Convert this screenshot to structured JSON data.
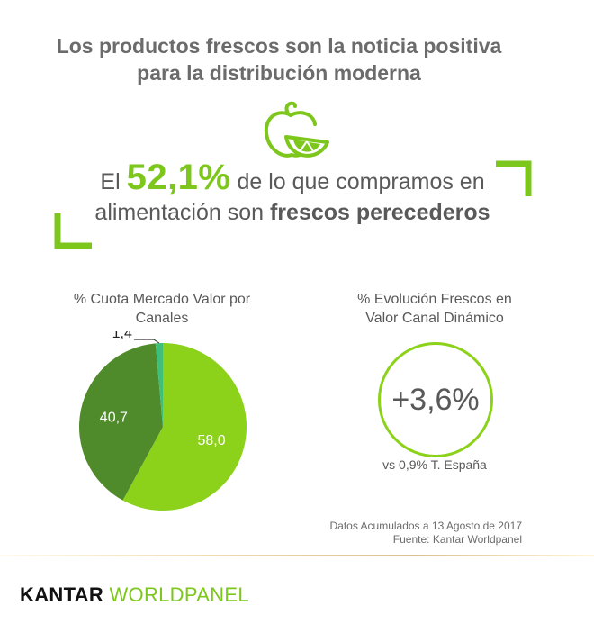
{
  "title": {
    "line1": "Los productos frescos son la noticia positiva",
    "line2": "para la distribución moderna"
  },
  "icon": "fruit-apple-lemon-icon",
  "headline": {
    "pre": "El ",
    "big": "52,1%",
    "mid": " de lo que compramos en",
    "line2_pre": "alimentación son ",
    "line2_bold": "frescos perecederos"
  },
  "pie": {
    "title_line1": "% Cuota Mercado Valor  por",
    "title_line2": "Canales"
  },
  "evolution": {
    "title_line1": "% Evolución Frescos en",
    "title_line2": "Valor Canal Dinámico",
    "value": "+3,6%",
    "subtitle": "vs 0,9% T. España"
  },
  "source": {
    "line1": "Datos Acumulados a 13 Agosto de 2017",
    "line2": "Fuente: Kantar Worldpanel"
  },
  "logo": {
    "word1": "KANTAR",
    "word2": "WORLDPANEL"
  },
  "colors": {
    "accent": "#7dc71d",
    "slice1": "#8cd11a",
    "slice2": "#4f8a2b",
    "slice3": "#3ec07a"
  },
  "chart_data": {
    "type": "pie",
    "title": "% Cuota Mercado Valor  por Canales",
    "categories": [
      "",
      "",
      ""
    ],
    "values": [
      58.0,
      40.7,
      1.4
    ],
    "labels": [
      "58,0",
      "40,7",
      "1,4"
    ]
  }
}
